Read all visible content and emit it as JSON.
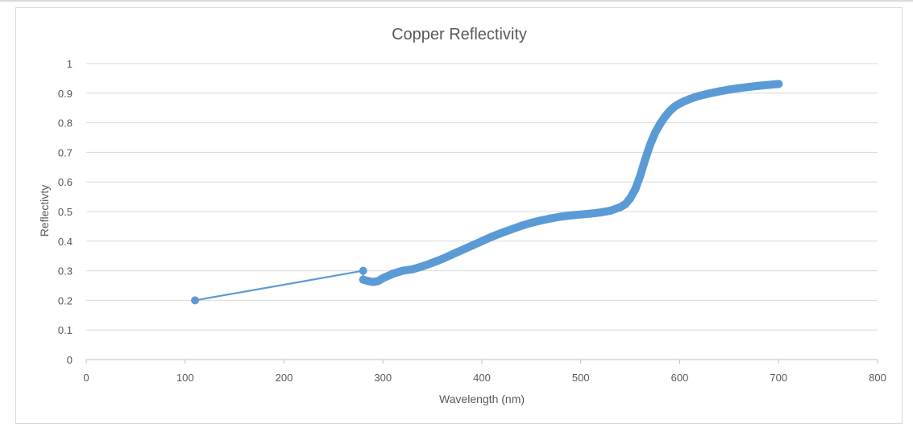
{
  "chart_data": {
    "type": "scatter",
    "title": "Copper Reflectivity",
    "xlabel": "Wavelength (nm)",
    "ylabel": "Reflectivty",
    "xlim": [
      0,
      800
    ],
    "ylim": [
      0,
      1
    ],
    "xticks": [
      0,
      100,
      200,
      300,
      400,
      500,
      600,
      700,
      800
    ],
    "yticks": [
      0,
      0.1,
      0.2,
      0.3,
      0.4,
      0.5,
      0.6,
      0.7,
      0.8,
      0.9,
      1
    ],
    "xtick_labels": [
      "0",
      "100",
      "200",
      "300",
      "400",
      "500",
      "600",
      "700",
      "800"
    ],
    "ytick_labels": [
      "0",
      "0.1",
      "0.2",
      "0.3",
      "0.4",
      "0.5",
      "0.6",
      "0.7",
      "0.8",
      "0.9",
      "1"
    ],
    "grid": "horizontal",
    "legend": "none",
    "series_color": "#5b9bd5",
    "series": [
      {
        "x": [
          110,
          280,
          280,
          285,
          290,
          295,
          300,
          310,
          320,
          330,
          340,
          350,
          360,
          370,
          380,
          390,
          400,
          410,
          420,
          430,
          440,
          450,
          460,
          470,
          480,
          490,
          500,
          510,
          520,
          530,
          540,
          545,
          550,
          555,
          560,
          565,
          570,
          575,
          580,
          585,
          590,
          595,
          600,
          605,
          610,
          615,
          620,
          630,
          640,
          650,
          660,
          670,
          680,
          690,
          700
        ],
        "y": [
          0.2,
          0.3,
          0.27,
          0.265,
          0.262,
          0.265,
          0.275,
          0.29,
          0.3,
          0.305,
          0.315,
          0.327,
          0.34,
          0.355,
          0.37,
          0.385,
          0.4,
          0.415,
          0.428,
          0.44,
          0.452,
          0.462,
          0.47,
          0.477,
          0.483,
          0.487,
          0.49,
          0.493,
          0.497,
          0.503,
          0.515,
          0.525,
          0.545,
          0.575,
          0.62,
          0.675,
          0.725,
          0.765,
          0.795,
          0.82,
          0.84,
          0.855,
          0.865,
          0.873,
          0.88,
          0.886,
          0.891,
          0.899,
          0.906,
          0.912,
          0.917,
          0.921,
          0.925,
          0.928,
          0.931
        ]
      }
    ]
  }
}
